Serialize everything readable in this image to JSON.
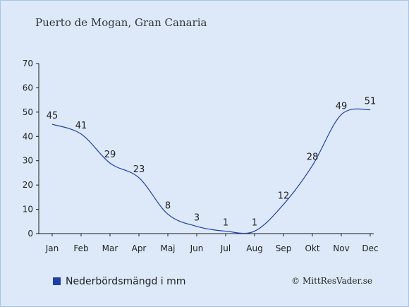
{
  "chart_data": {
    "type": "line",
    "title": "Puerto de Mogan, Gran Canaria",
    "categories": [
      "Jan",
      "Feb",
      "Mar",
      "Apr",
      "Maj",
      "Jun",
      "Jul",
      "Aug",
      "Sep",
      "Okt",
      "Nov",
      "Dec"
    ],
    "series": [
      {
        "name": "Nederbördsmängd i mm",
        "values": [
          45,
          41,
          29,
          23,
          8,
          3,
          1,
          1,
          12,
          28,
          49,
          51
        ],
        "color": "#1f3fa8"
      }
    ],
    "ylim": [
      0,
      70
    ],
    "yticks": [
      0,
      10,
      20,
      30,
      40,
      50,
      60,
      70
    ],
    "grid": false,
    "legend": "bottom-left"
  },
  "copyright": "© MittResVader.se",
  "colors": {
    "background": "#dde9f8",
    "border": "#a9c3e6",
    "axis": "#1a1a1a",
    "legend_marker": "#1f3fa8"
  }
}
